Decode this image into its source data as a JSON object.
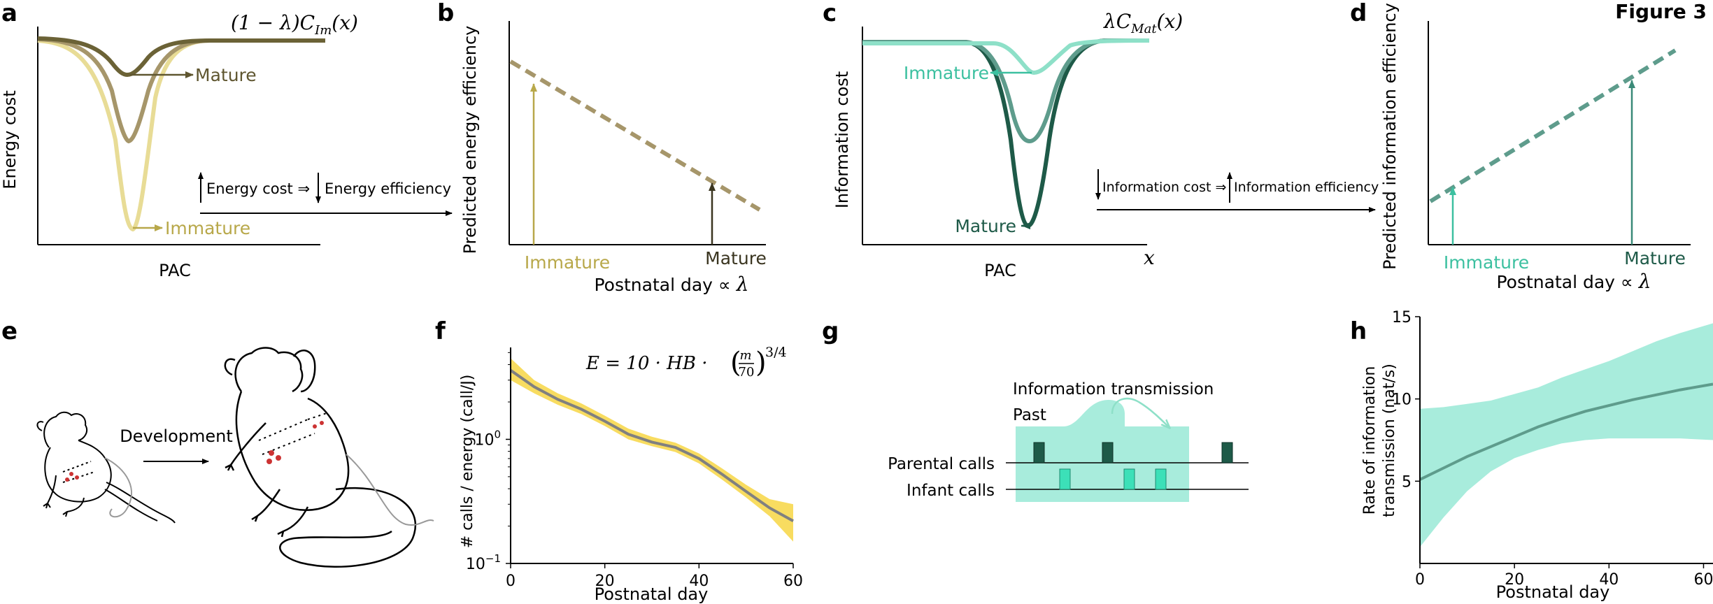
{
  "figure_title": "Figure 3",
  "panel_labels": [
    "a",
    "b",
    "c",
    "d",
    "e",
    "f",
    "g",
    "h"
  ],
  "colors": {
    "energy_light": "#e8dc96",
    "energy_mid": "#a6966a",
    "energy_dark": "#6b6236",
    "energy_text_mature": "#5f5630",
    "energy_text_immature": "#b8a84a",
    "info_light": "#8ee0c8",
    "info_mid": "#5e9c8c",
    "info_dark": "#1e5a48",
    "info_text_immature": "#3cc0a0",
    "info_text_mature": "#1e5a48",
    "yellow_band": "#f8dc60",
    "grey_line": "#808080",
    "teal_band": "#a8ecdc",
    "teal_line": "#5e9c8c",
    "dark_call": "#1e5a48",
    "light_call": "#3ce0b8",
    "dog_dots": "#cc3333"
  },
  "panel_a": {
    "curve_formula": "(1 − λ)C",
    "curve_sub": "Im",
    "curve_arg": "(x)",
    "ylabel": "Energy cost",
    "xlabel": "PAC",
    "mature_label": "Mature",
    "immature_label": "Immature",
    "arrow_text_1": "Energy cost ⇒",
    "arrow_text_2": "Energy efficiency"
  },
  "panel_b": {
    "ylabel": "Predicted energy efficiency",
    "xlabel_text": "Postnatal day ∝ ",
    "xlabel_math": "λ",
    "immature_label": "Immature",
    "mature_label": "Mature"
  },
  "panel_c": {
    "curve_formula": "λC",
    "curve_sub": "Mat",
    "curve_arg": "(x)",
    "ylabel": "Information cost",
    "xlabel": "PAC",
    "x_var": "x",
    "immature_label": "Immature",
    "mature_label": "Mature",
    "arrow_text_1": "Information cost ⇒",
    "arrow_text_2": "Information efficiency"
  },
  "panel_d": {
    "ylabel": "Predicted information efficiency",
    "xlabel_text": "Postnatal day ∝ ",
    "xlabel_math": "λ",
    "immature_label": "Immature",
    "mature_label": "Mature"
  },
  "panel_e": {
    "development_label": "Development"
  },
  "panel_g": {
    "title": "Information transmission",
    "past_label": "Past",
    "parental_label": "Parental calls",
    "infant_label": "Infant calls"
  },
  "chart_data": [
    {
      "panel": "f",
      "type": "line",
      "xlabel": "Postnatal day",
      "ylabel": "# calls / energy (call/J)",
      "formula_text": "E = 10 · HB · (m/70)^3/4",
      "formula_lhs": "E = 10 · HB · ",
      "formula_frac_num": "m",
      "formula_frac_den": "70",
      "formula_exp": "3/4",
      "y_scale": "log",
      "xlim": [
        0,
        60
      ],
      "ylim": [
        0.1,
        5.5
      ],
      "x_ticks": [
        0,
        20,
        40,
        60
      ],
      "x_tick_labels": [
        "0",
        "20",
        "40",
        "60"
      ],
      "y_ticks": [
        0.1,
        1
      ],
      "y_tick_labels_base": [
        "10",
        "10"
      ],
      "y_tick_labels_exp": [
        "−1",
        "0"
      ],
      "x": [
        0,
        5,
        10,
        15,
        20,
        25,
        30,
        35,
        40,
        45,
        50,
        55,
        60
      ],
      "y": [
        3.6,
        2.65,
        2.1,
        1.75,
        1.4,
        1.1,
        0.95,
        0.86,
        0.7,
        0.52,
        0.38,
        0.28,
        0.22
      ],
      "y_lower": [
        3.0,
        2.35,
        1.9,
        1.6,
        1.28,
        1.0,
        0.88,
        0.79,
        0.64,
        0.47,
        0.34,
        0.24,
        0.15
      ],
      "y_upper": [
        4.5,
        3.0,
        2.35,
        1.95,
        1.55,
        1.22,
        1.05,
        0.94,
        0.77,
        0.58,
        0.43,
        0.33,
        0.3
      ]
    },
    {
      "panel": "h",
      "type": "area",
      "xlabel": "Postnatal day",
      "ylabel_line1": "Rate of information",
      "ylabel_line2": "transmission (nat/s)",
      "xlim": [
        0,
        62
      ],
      "ylim": [
        0,
        15
      ],
      "x_ticks": [
        0,
        20,
        40,
        60
      ],
      "x_tick_labels": [
        "0",
        "20",
        "40",
        "60"
      ],
      "y_ticks": [
        5,
        10,
        15
      ],
      "y_tick_labels": [
        "5",
        "10",
        "15"
      ],
      "x": [
        0,
        5,
        10,
        15,
        20,
        25,
        30,
        35,
        40,
        45,
        50,
        55,
        62
      ],
      "y": [
        5.1,
        5.8,
        6.5,
        7.1,
        7.7,
        8.3,
        8.8,
        9.25,
        9.6,
        9.95,
        10.25,
        10.55,
        10.9
      ],
      "y_lower": [
        1.0,
        2.8,
        4.4,
        5.6,
        6.4,
        6.9,
        7.3,
        7.5,
        7.6,
        7.6,
        7.6,
        7.6,
        7.5
      ],
      "y_upper": [
        9.4,
        9.5,
        9.7,
        9.9,
        10.3,
        10.7,
        11.3,
        11.8,
        12.3,
        12.9,
        13.5,
        14.0,
        14.6
      ]
    }
  ]
}
